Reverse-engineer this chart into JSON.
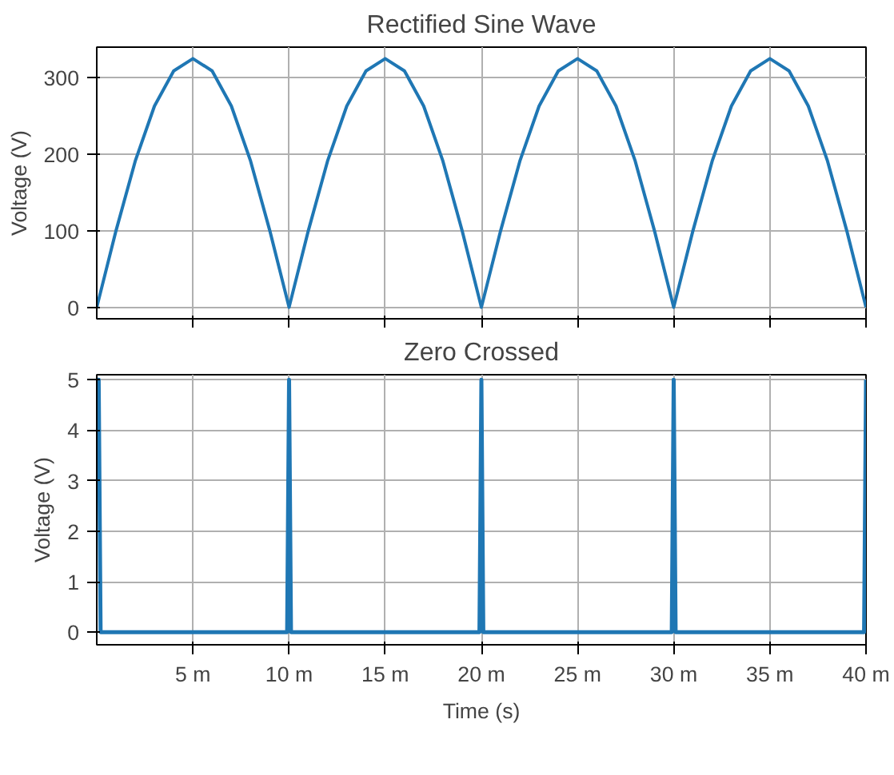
{
  "chart_data": [
    {
      "type": "line",
      "title": "Rectified Sine Wave",
      "ylabel": "Voltage (V)",
      "x": [
        0,
        1,
        2,
        3,
        4,
        5,
        6,
        7,
        8,
        9,
        10,
        11,
        12,
        13,
        14,
        15,
        16,
        17,
        18,
        19,
        20,
        21,
        22,
        23,
        24,
        25,
        26,
        27,
        28,
        29,
        30,
        31,
        32,
        33,
        34,
        35,
        36,
        37,
        38,
        39,
        40
      ],
      "series": [
        {
          "color": "#1f77b4",
          "values": [
            0,
            100,
            191,
            263,
            309,
            325,
            309,
            263,
            191,
            100,
            0,
            100,
            191,
            263,
            309,
            325,
            309,
            263,
            191,
            100,
            0,
            100,
            191,
            263,
            309,
            325,
            309,
            263,
            191,
            100,
            0,
            100,
            191,
            263,
            309,
            325,
            309,
            263,
            191,
            100,
            0
          ]
        }
      ],
      "xlim": [
        0,
        40
      ],
      "xticks": [
        {
          "value": 5,
          "label": null
        },
        {
          "value": 10,
          "label": null
        },
        {
          "value": 15,
          "label": null
        },
        {
          "value": 20,
          "label": null
        },
        {
          "value": 25,
          "label": null
        },
        {
          "value": 30,
          "label": null
        },
        {
          "value": 35,
          "label": null
        },
        {
          "value": 40,
          "label": null
        }
      ],
      "ylim": [
        -15,
        340
      ],
      "yticks": [
        0,
        100,
        200,
        300
      ],
      "tick_labels": "y",
      "grid": true,
      "line_style": "solid"
    },
    {
      "type": "line",
      "title": "Zero Crossed",
      "ylabel": "Voltage (V)",
      "xlabel": "Time (s)",
      "x": [
        0,
        0.1,
        0.2,
        9.9,
        10,
        10.1,
        19.9,
        20,
        20.1,
        29.9,
        30,
        30.1,
        39.9,
        40
      ],
      "series": [
        {
          "color": "#1f77b4",
          "values": [
            5,
            5,
            0,
            0,
            5,
            0,
            0,
            5,
            0,
            0,
            5,
            0,
            0,
            5
          ]
        }
      ],
      "xlim": [
        0,
        40
      ],
      "xticks": [
        {
          "value": 5,
          "label": "5 m"
        },
        {
          "value": 10,
          "label": "10 m"
        },
        {
          "value": 15,
          "label": "15 m"
        },
        {
          "value": 20,
          "label": "20 m"
        },
        {
          "value": 25,
          "label": "25 m"
        },
        {
          "value": 30,
          "label": "30 m"
        },
        {
          "value": 35,
          "label": "35 m"
        },
        {
          "value": 40,
          "label": "40 m"
        }
      ],
      "ylim": [
        -0.25,
        5.1
      ],
      "yticks": [
        0,
        1,
        2,
        3,
        4,
        5
      ],
      "grid": true,
      "line_style": "solid"
    }
  ]
}
